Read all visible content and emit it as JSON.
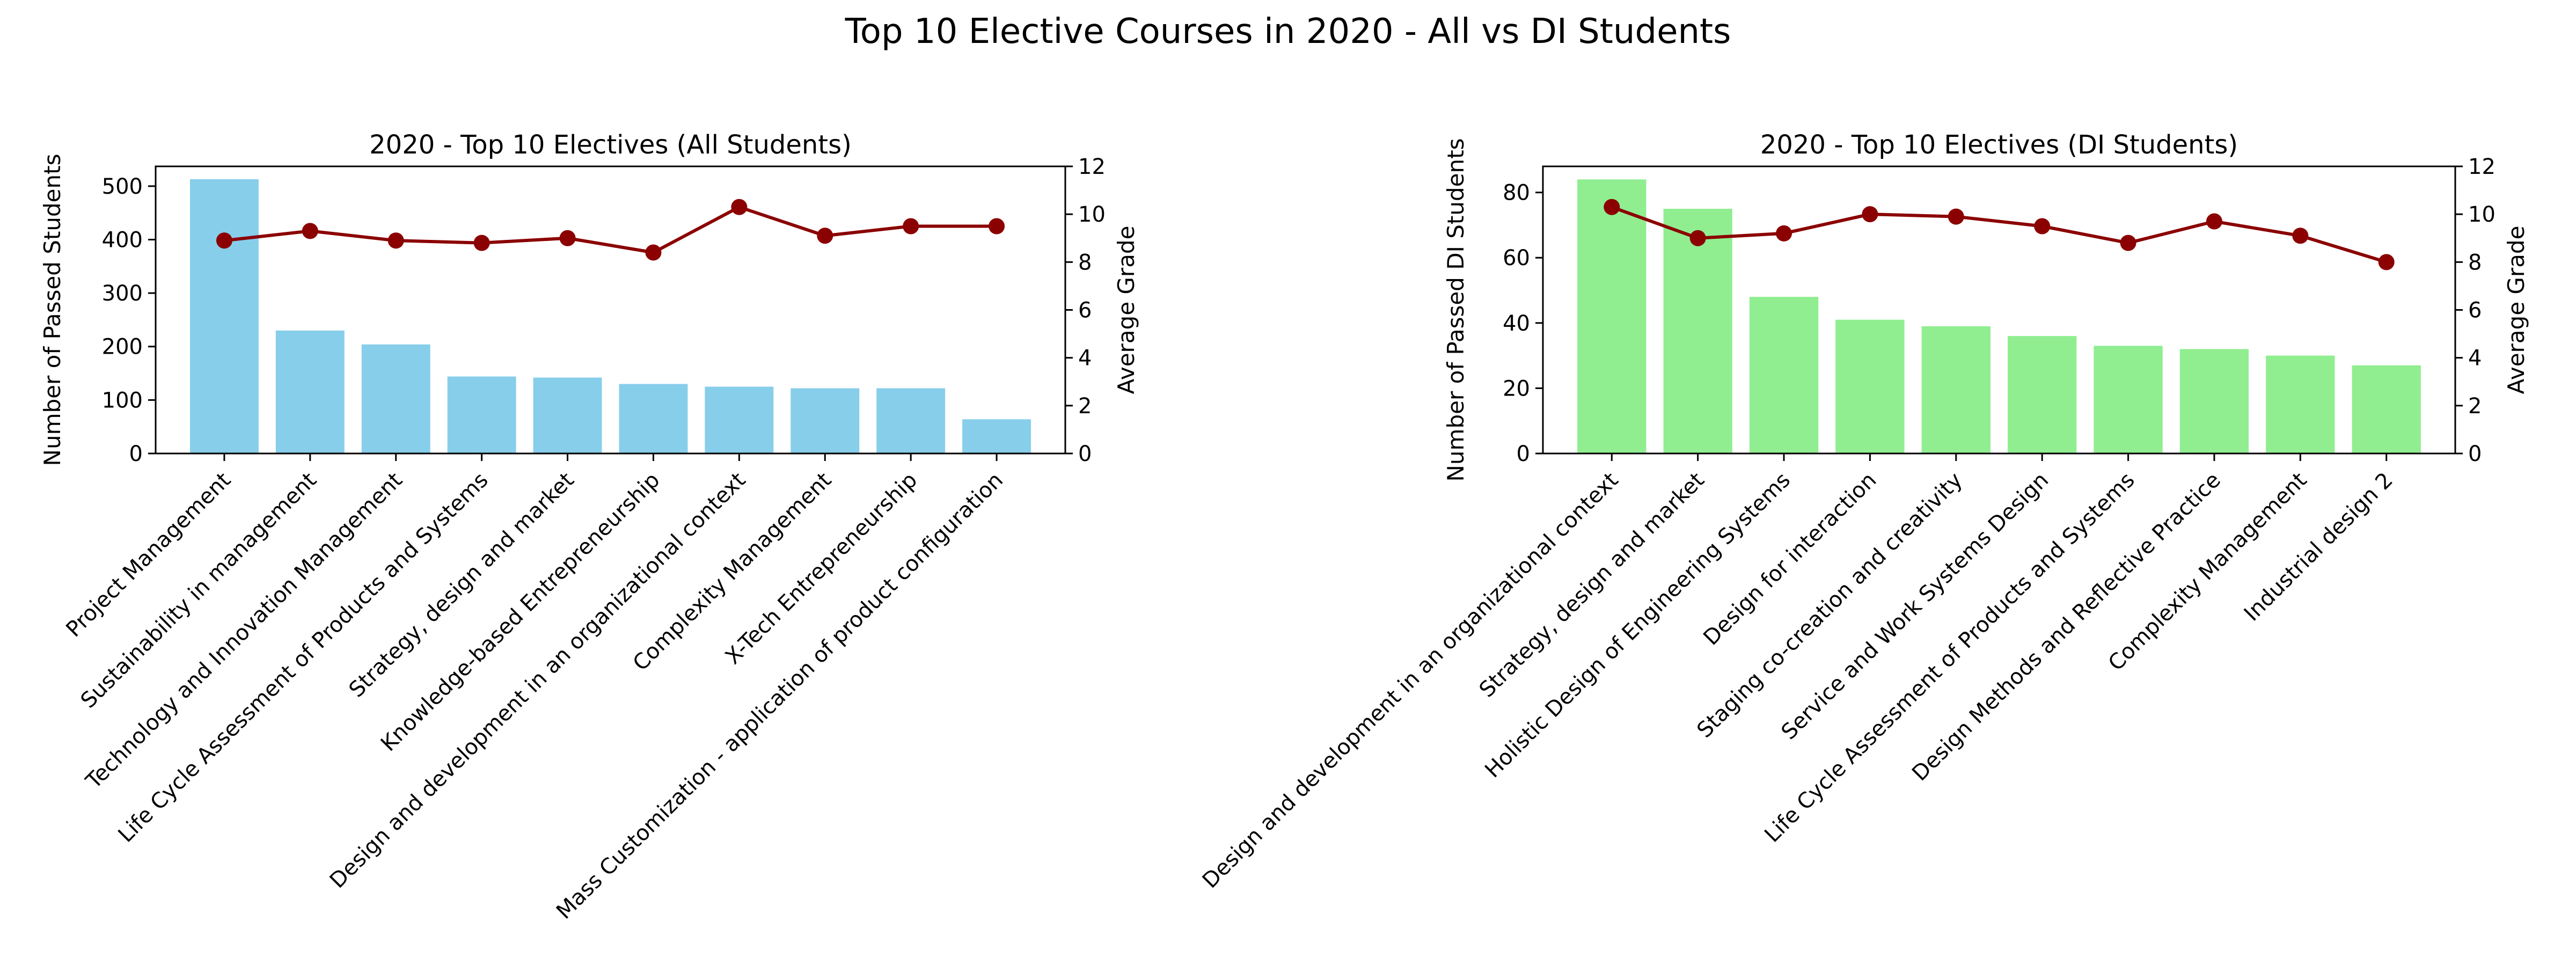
{
  "figure": {
    "title": "Top 10 Elective Courses in 2020 - All vs DI Students"
  },
  "colors": {
    "bar_all": "#87CEEB",
    "bar_di": "#90EE90",
    "grade_line": "#8B0000"
  },
  "chart_data": [
    {
      "type": "bar",
      "title": "2020 - Top 10 Electives (All Students)",
      "ylabel": "Number of Passed Students",
      "y2label": "Average Grade",
      "categories": [
        "Project Management",
        "Sustainability in management",
        "Technology and Innovation Management",
        "Life Cycle Assessment of Products and Systems",
        "Strategy, design and market",
        "Knowledge-based Entrepreneurship",
        "Design and development in an organizational context",
        "Complexity Management",
        "X-Tech Entrepreneurship",
        "Mass Customization - application of product configuration"
      ],
      "values": [
        513,
        230,
        204,
        144,
        142,
        130,
        125,
        122,
        122,
        64
      ],
      "line_values": [
        8.9,
        9.3,
        8.9,
        8.8,
        9.0,
        8.4,
        10.3,
        9.1,
        9.5,
        9.5
      ],
      "ylim": [
        0,
        537
      ],
      "yticks": [
        0,
        100,
        200,
        300,
        400,
        500
      ],
      "y2lim": [
        0,
        12
      ],
      "y2ticks": [
        0,
        2,
        4,
        6,
        8,
        10,
        12
      ],
      "grid": false
    },
    {
      "type": "bar",
      "title": "2020 - Top 10 Electives (DI Students)",
      "ylabel": "Number of Passed DI Students",
      "y2label": "Average Grade",
      "categories": [
        "Design and development in an organizational context",
        "Strategy, design and market",
        "Holistic Design of Engineering Systems",
        "Design for interaction",
        "Staging co-creation and creativity",
        "Service and Work Systems Design",
        "Life Cycle Assessment of Products and Systems",
        "Design Methods and Reflective Practice",
        "Complexity Management",
        "Industrial design 2"
      ],
      "values": [
        84,
        75,
        48,
        41,
        39,
        36,
        33,
        32,
        30,
        27
      ],
      "line_values": [
        10.3,
        9.0,
        9.2,
        10.0,
        9.9,
        9.5,
        8.8,
        9.7,
        9.1,
        8.0
      ],
      "ylim": [
        0,
        88
      ],
      "yticks": [
        0,
        20,
        40,
        60,
        80
      ],
      "y2lim": [
        0,
        12
      ],
      "y2ticks": [
        0,
        2,
        4,
        6,
        8,
        10,
        12
      ],
      "grid": false
    }
  ]
}
